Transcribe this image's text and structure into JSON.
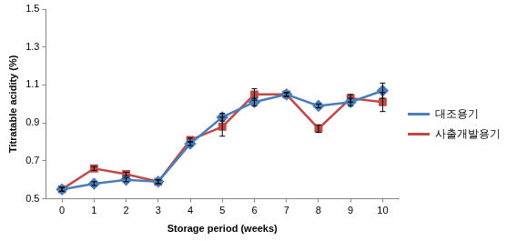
{
  "chart_data": {
    "type": "line",
    "x_label": "Storage period (weeks)",
    "y_label": "Titratable acidity (%)",
    "categories": [
      "0",
      "1",
      "2",
      "3",
      "4",
      "5",
      "6",
      "7",
      "8",
      "9",
      "10"
    ],
    "series": [
      {
        "name": "대조용기",
        "color": "#4a7ebb",
        "marker": "diamond",
        "values": [
          0.55,
          0.58,
          0.6,
          0.59,
          0.79,
          0.93,
          1.01,
          1.05,
          0.99,
          1.01,
          1.07
        ],
        "errors": [
          0.01,
          0.01,
          0.01,
          0.01,
          0.01,
          0.02,
          0.02,
          0.01,
          0.01,
          0.02,
          0.04
        ]
      },
      {
        "name": "사출개발용기",
        "color": "#be4b48",
        "marker": "square",
        "values": [
          0.55,
          0.66,
          0.63,
          0.59,
          0.81,
          0.88,
          1.05,
          1.05,
          0.87,
          1.03,
          1.01
        ],
        "errors": [
          0.01,
          0.01,
          0.01,
          0.01,
          0.01,
          0.05,
          0.03,
          0.01,
          0.02,
          0.02,
          0.05
        ]
      }
    ],
    "ylim": [
      0.5,
      1.5
    ],
    "yticks": [
      0.5,
      0.7,
      0.9,
      1.1,
      1.3,
      1.5
    ],
    "grid": false,
    "legend": "right"
  }
}
